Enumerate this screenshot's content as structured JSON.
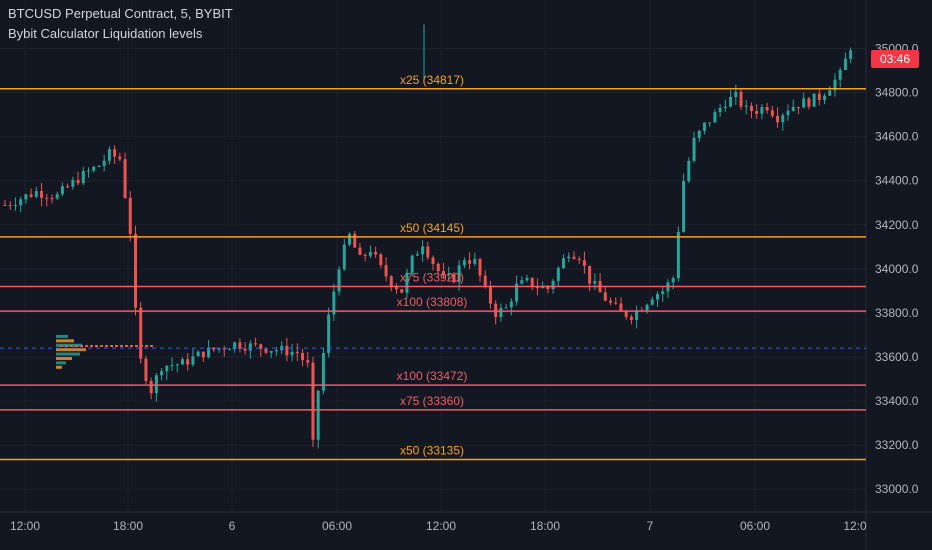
{
  "legend": {
    "symbol": "BTCUSD Perpetual Contract, 5, BYBIT",
    "indicator": "Bybit Calculator Liquidation levels"
  },
  "countdown": {
    "label": "03:46",
    "color": "#f23645"
  },
  "colors": {
    "background": "#131722",
    "grid": "#1e222d",
    "axis_text": "#b2b5be",
    "up": "#26a69a",
    "down": "#ef5350",
    "long_level": "#f7a21b",
    "short_level": "#f05d62",
    "current_price": "#2962ff"
  },
  "chart_data": {
    "type": "candlestick",
    "title": "BTCUSD Perpetual Contract, 5, BYBIT",
    "subtitle": "Bybit Calculator Liquidation levels",
    "x_tick_labels": [
      "12:00",
      "18:00",
      "6",
      "06:00",
      "12:00",
      "18:00",
      "7",
      "06:00",
      "12:0"
    ],
    "y_tick_labels": [
      "33000.0",
      "33200.0",
      "33400.0",
      "33600.0",
      "33800.0",
      "34000.0",
      "34200.0",
      "34400.0",
      "34600.0",
      "34800.0",
      "35000.0"
    ],
    "ylim": [
      32960,
      35220
    ],
    "grid": true,
    "price_series_shape": [
      [
        0,
        34290
      ],
      [
        3,
        34350
      ],
      [
        5,
        34330
      ],
      [
        7,
        34410
      ],
      [
        9,
        34470
      ],
      [
        10,
        34520
      ],
      [
        11,
        34500
      ],
      [
        12,
        34170
      ],
      [
        12.5,
        33800
      ],
      [
        13,
        33580
      ],
      [
        14,
        33450
      ],
      [
        15,
        33560
      ],
      [
        17,
        33570
      ],
      [
        19,
        33620
      ],
      [
        22,
        33660
      ],
      [
        25,
        33640
      ],
      [
        28,
        33620
      ],
      [
        29,
        33560
      ],
      [
        29.5,
        33200
      ],
      [
        30,
        33450
      ],
      [
        31,
        33780
      ],
      [
        32,
        34020
      ],
      [
        33,
        34150
      ],
      [
        34,
        34040
      ],
      [
        35,
        34090
      ],
      [
        36,
        34000
      ],
      [
        37,
        33940
      ],
      [
        38,
        33900
      ],
      [
        39,
        34040
      ],
      [
        40,
        34120
      ],
      [
        41,
        34030
      ],
      [
        42,
        33950
      ],
      [
        43,
        33960
      ],
      [
        44,
        34050
      ],
      [
        45,
        34030
      ],
      [
        46,
        33900
      ],
      [
        47,
        33800
      ],
      [
        48,
        33820
      ],
      [
        49,
        33920
      ],
      [
        50,
        33940
      ],
      [
        51,
        33920
      ],
      [
        52,
        33910
      ],
      [
        53,
        34000
      ],
      [
        54,
        34080
      ],
      [
        55,
        34060
      ],
      [
        56,
        33950
      ],
      [
        57,
        33890
      ],
      [
        58,
        33840
      ],
      [
        59,
        33800
      ],
      [
        60,
        33790
      ],
      [
        61,
        33830
      ],
      [
        62,
        33880
      ],
      [
        63,
        33900
      ],
      [
        64,
        33960
      ],
      [
        65,
        34400
      ],
      [
        66,
        34580
      ],
      [
        67,
        34650
      ],
      [
        68,
        34700
      ],
      [
        69,
        34760
      ],
      [
        70,
        34780
      ],
      [
        71,
        34720
      ],
      [
        72,
        34720
      ],
      [
        73,
        34740
      ],
      [
        74,
        34690
      ],
      [
        75,
        34730
      ],
      [
        76,
        34750
      ],
      [
        77,
        34760
      ],
      [
        78,
        34780
      ],
      [
        79,
        34830
      ],
      [
        80,
        34880
      ],
      [
        81,
        35010
      ]
    ],
    "liquidation_levels": [
      {
        "label": "x25 (34817)",
        "price": 34817,
        "side": "long"
      },
      {
        "label": "x50 (34145)",
        "price": 34145,
        "side": "long"
      },
      {
        "label": "x75 (33920)",
        "price": 33920,
        "side": "short"
      },
      {
        "label": "x100 (33808)",
        "price": 33808,
        "side": "short"
      },
      {
        "label": "x100 (33472)",
        "price": 33472,
        "side": "short"
      },
      {
        "label": "x75 (33360)",
        "price": 33360,
        "side": "short"
      },
      {
        "label": "x50 (33135)",
        "price": 33135,
        "side": "long"
      }
    ],
    "current_price_line": 33640
  }
}
